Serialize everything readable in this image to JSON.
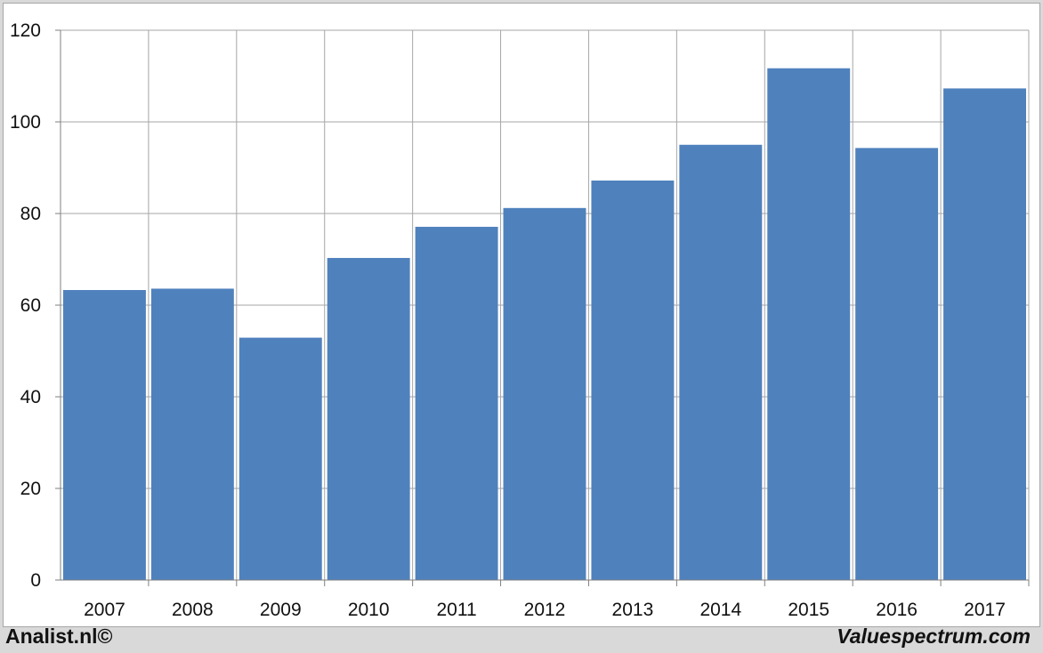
{
  "chart_data": {
    "type": "bar",
    "title": "",
    "xlabel": "",
    "ylabel": "",
    "categories": [
      "2007",
      "2008",
      "2009",
      "2010",
      "2011",
      "2012",
      "2013",
      "2014",
      "2015",
      "2016",
      "2017"
    ],
    "values": [
      63.3,
      63.6,
      52.9,
      70.3,
      77.1,
      81.2,
      87.2,
      95.0,
      111.7,
      94.3,
      107.3
    ],
    "ylim": [
      0,
      120
    ],
    "yticks": [
      0,
      20,
      40,
      60,
      80,
      100,
      120
    ],
    "grid": true,
    "legend": "none",
    "colors": {
      "bar": "#4f81bd",
      "grid": "#a6a6a6",
      "axis": "#7f7f7f"
    }
  },
  "footer": {
    "left_text": "Analist.nl©",
    "right_text": "Valuespectrum.com"
  }
}
